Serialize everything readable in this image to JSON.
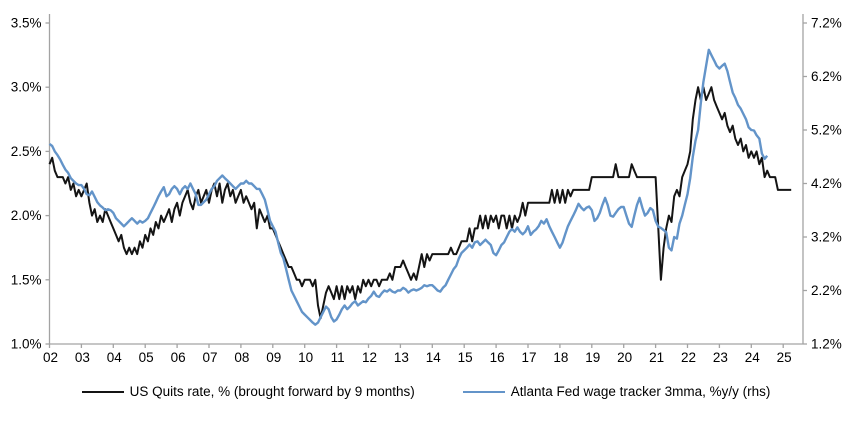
{
  "legend": {
    "items": [
      {
        "label": "US Quits rate, % (brought forward by 9 months)",
        "color": "#141414"
      },
      {
        "label": "Atlanta Fed wage tracker 3mma, %y/y (rhs)",
        "color": "#6394C9"
      }
    ]
  },
  "chart_data": {
    "type": "line",
    "title": "",
    "grid": false,
    "legend_position": "bottom-center",
    "axes": {
      "left": {
        "min": 1.0,
        "max": 3.5,
        "tick_step": 0.5,
        "tick_labels": [
          "1.0%",
          "1.5%",
          "2.0%",
          "2.5%",
          "3.0%",
          "3.5%"
        ]
      },
      "right": {
        "min": 1.2,
        "max": 7.2,
        "tick_step": 1.0,
        "tick_labels": [
          "1.2%",
          "2.2%",
          "3.2%",
          "4.2%",
          "5.2%",
          "6.2%",
          "7.2%"
        ]
      },
      "x": {
        "start_year": 2002,
        "end_year": 2025,
        "tick_labels": [
          "02",
          "03",
          "04",
          "05",
          "06",
          "07",
          "08",
          "09",
          "10",
          "11",
          "12",
          "13",
          "14",
          "15",
          "16",
          "17",
          "18",
          "19",
          "20",
          "21",
          "22",
          "23",
          "24",
          "25"
        ]
      }
    },
    "axis_color": "#A3A3A3",
    "series": [
      {
        "name": "US Quits rate, % (brought forward by 9 months)",
        "axis": "left",
        "color": "#141414",
        "width": 2,
        "start": 2002.0,
        "step_years": 0.0833333,
        "values": [
          2.4,
          2.45,
          2.35,
          2.3,
          2.3,
          2.3,
          2.25,
          2.3,
          2.2,
          2.25,
          2.15,
          2.2,
          2.15,
          2.2,
          2.25,
          2.1,
          2.0,
          2.05,
          1.95,
          2.0,
          1.95,
          2.05,
          2.0,
          1.95,
          1.9,
          1.85,
          1.8,
          1.85,
          1.75,
          1.7,
          1.75,
          1.7,
          1.75,
          1.7,
          1.8,
          1.75,
          1.85,
          1.8,
          1.9,
          1.85,
          1.95,
          1.9,
          2.0,
          1.95,
          2.0,
          2.05,
          1.95,
          2.05,
          2.1,
          2.0,
          2.1,
          2.15,
          2.2,
          2.1,
          2.05,
          2.15,
          2.2,
          2.1,
          2.15,
          2.2,
          2.1,
          2.2,
          2.25,
          2.15,
          2.25,
          2.1,
          2.2,
          2.25,
          2.15,
          2.2,
          2.1,
          2.15,
          2.2,
          2.1,
          2.15,
          2.1,
          2.05,
          2.1,
          1.9,
          2.05,
          2.0,
          1.95,
          2.0,
          1.9,
          1.9,
          1.85,
          1.8,
          1.75,
          1.7,
          1.65,
          1.6,
          1.6,
          1.55,
          1.5,
          1.5,
          1.45,
          1.5,
          1.5,
          1.5,
          1.45,
          1.5,
          1.3,
          1.2,
          1.3,
          1.4,
          1.45,
          1.4,
          1.35,
          1.45,
          1.35,
          1.45,
          1.35,
          1.45,
          1.4,
          1.45,
          1.35,
          1.45,
          1.4,
          1.5,
          1.45,
          1.5,
          1.45,
          1.5,
          1.5,
          1.45,
          1.5,
          1.5,
          1.5,
          1.55,
          1.5,
          1.6,
          1.6,
          1.6,
          1.65,
          1.6,
          1.55,
          1.5,
          1.55,
          1.5,
          1.6,
          1.7,
          1.6,
          1.7,
          1.65,
          1.7,
          1.7,
          1.7,
          1.7,
          1.7,
          1.7,
          1.7,
          1.75,
          1.7,
          1.7,
          1.75,
          1.8,
          1.8,
          1.8,
          1.9,
          1.8,
          1.9,
          1.9,
          2.0,
          1.9,
          2.0,
          1.9,
          2.0,
          1.95,
          2.0,
          1.9,
          2.0,
          2.0,
          1.9,
          2.0,
          1.9,
          2.0,
          1.95,
          2.0,
          2.1,
          2.0,
          2.1,
          2.1,
          2.1,
          2.1,
          2.1,
          2.1,
          2.1,
          2.1,
          2.1,
          2.2,
          2.1,
          2.2,
          2.1,
          2.2,
          2.1,
          2.2,
          2.15,
          2.2,
          2.2,
          2.2,
          2.2,
          2.2,
          2.2,
          2.2,
          2.3,
          2.3,
          2.3,
          2.3,
          2.3,
          2.3,
          2.3,
          2.3,
          2.3,
          2.4,
          2.3,
          2.3,
          2.3,
          2.3,
          2.3,
          2.4,
          2.35,
          2.3,
          2.3,
          2.3,
          2.3,
          2.3,
          2.3,
          2.3,
          2.3,
          1.9,
          1.5,
          1.75,
          1.9,
          2.0,
          1.95,
          2.15,
          2.2,
          2.15,
          2.3,
          2.35,
          2.4,
          2.5,
          2.75,
          2.9,
          3.0,
          2.9,
          3.0,
          2.9,
          2.95,
          3.0,
          2.9,
          2.85,
          2.8,
          2.75,
          2.8,
          2.7,
          2.65,
          2.7,
          2.6,
          2.55,
          2.6,
          2.5,
          2.55,
          2.45,
          2.5,
          2.45,
          2.5,
          2.4,
          2.45,
          2.3,
          2.35,
          2.3,
          2.3,
          2.3,
          2.2,
          2.2,
          2.2,
          2.2,
          2.2,
          2.2
        ]
      },
      {
        "name": "Atlanta Fed wage tracker 3mma, %y/y (rhs)",
        "axis": "right",
        "color": "#6394C9",
        "width": 2.4,
        "start": 2002.0,
        "step_years": 0.0833333,
        "values": [
          4.94,
          4.9,
          4.8,
          4.73,
          4.65,
          4.55,
          4.46,
          4.4,
          4.3,
          4.25,
          4.2,
          4.17,
          4.17,
          4.1,
          4.0,
          3.98,
          4.05,
          3.95,
          3.85,
          3.79,
          3.75,
          3.7,
          3.72,
          3.7,
          3.65,
          3.55,
          3.5,
          3.45,
          3.4,
          3.45,
          3.5,
          3.55,
          3.5,
          3.45,
          3.5,
          3.47,
          3.5,
          3.55,
          3.65,
          3.75,
          3.85,
          3.96,
          4.05,
          4.13,
          3.96,
          4.0,
          4.1,
          4.15,
          4.1,
          4.0,
          4.1,
          4.15,
          4.1,
          4.2,
          4.1,
          4.0,
          3.8,
          3.8,
          3.85,
          3.9,
          4.0,
          4.1,
          4.15,
          4.25,
          4.3,
          4.35,
          4.3,
          4.25,
          4.2,
          4.15,
          4.1,
          4.15,
          4.2,
          4.2,
          4.25,
          4.2,
          4.2,
          4.15,
          4.1,
          4.1,
          4.0,
          3.9,
          3.7,
          3.5,
          3.4,
          3.3,
          3.1,
          2.9,
          2.8,
          2.6,
          2.4,
          2.2,
          2.1,
          2.0,
          1.9,
          1.8,
          1.75,
          1.7,
          1.65,
          1.6,
          1.56,
          1.6,
          1.7,
          1.8,
          1.9,
          1.85,
          1.7,
          1.62,
          1.66,
          1.75,
          1.85,
          1.92,
          1.85,
          1.9,
          1.96,
          2.0,
          1.92,
          1.96,
          2.0,
          1.98,
          2.05,
          2.1,
          2.18,
          2.1,
          2.08,
          2.15,
          2.2,
          2.18,
          2.22,
          2.18,
          2.16,
          2.2,
          2.2,
          2.25,
          2.22,
          2.16,
          2.2,
          2.22,
          2.2,
          2.22,
          2.25,
          2.3,
          2.28,
          2.3,
          2.3,
          2.25,
          2.2,
          2.18,
          2.25,
          2.3,
          2.4,
          2.5,
          2.6,
          2.66,
          2.8,
          2.9,
          2.95,
          3.0,
          3.06,
          3.0,
          3.1,
          3.12,
          3.05,
          3.1,
          3.15,
          3.1,
          3.05,
          2.9,
          2.86,
          2.95,
          3.05,
          3.1,
          3.2,
          3.3,
          3.35,
          3.3,
          3.38,
          3.3,
          3.25,
          3.3,
          3.4,
          3.24,
          3.3,
          3.34,
          3.4,
          3.5,
          3.45,
          3.53,
          3.4,
          3.3,
          3.2,
          3.1,
          3.0,
          3.1,
          3.25,
          3.4,
          3.5,
          3.6,
          3.7,
          3.82,
          3.75,
          3.7,
          3.75,
          3.77,
          3.7,
          3.5,
          3.55,
          3.65,
          3.8,
          3.93,
          3.8,
          3.6,
          3.58,
          3.65,
          3.72,
          3.76,
          3.76,
          3.6,
          3.45,
          3.39,
          3.6,
          3.8,
          3.93,
          3.75,
          3.6,
          3.65,
          3.74,
          3.7,
          3.5,
          3.39,
          3.37,
          3.33,
          3.29,
          3.0,
          2.95,
          3.2,
          3.17,
          3.45,
          3.6,
          3.8,
          4.0,
          4.3,
          4.7,
          5.0,
          5.2,
          5.7,
          6.1,
          6.4,
          6.7,
          6.6,
          6.5,
          6.4,
          6.35,
          6.4,
          6.44,
          6.3,
          6.1,
          5.9,
          5.8,
          5.67,
          5.6,
          5.5,
          5.4,
          5.25,
          5.2,
          5.19,
          5.1,
          5.04,
          4.76,
          4.66,
          4.72
        ]
      }
    ]
  }
}
